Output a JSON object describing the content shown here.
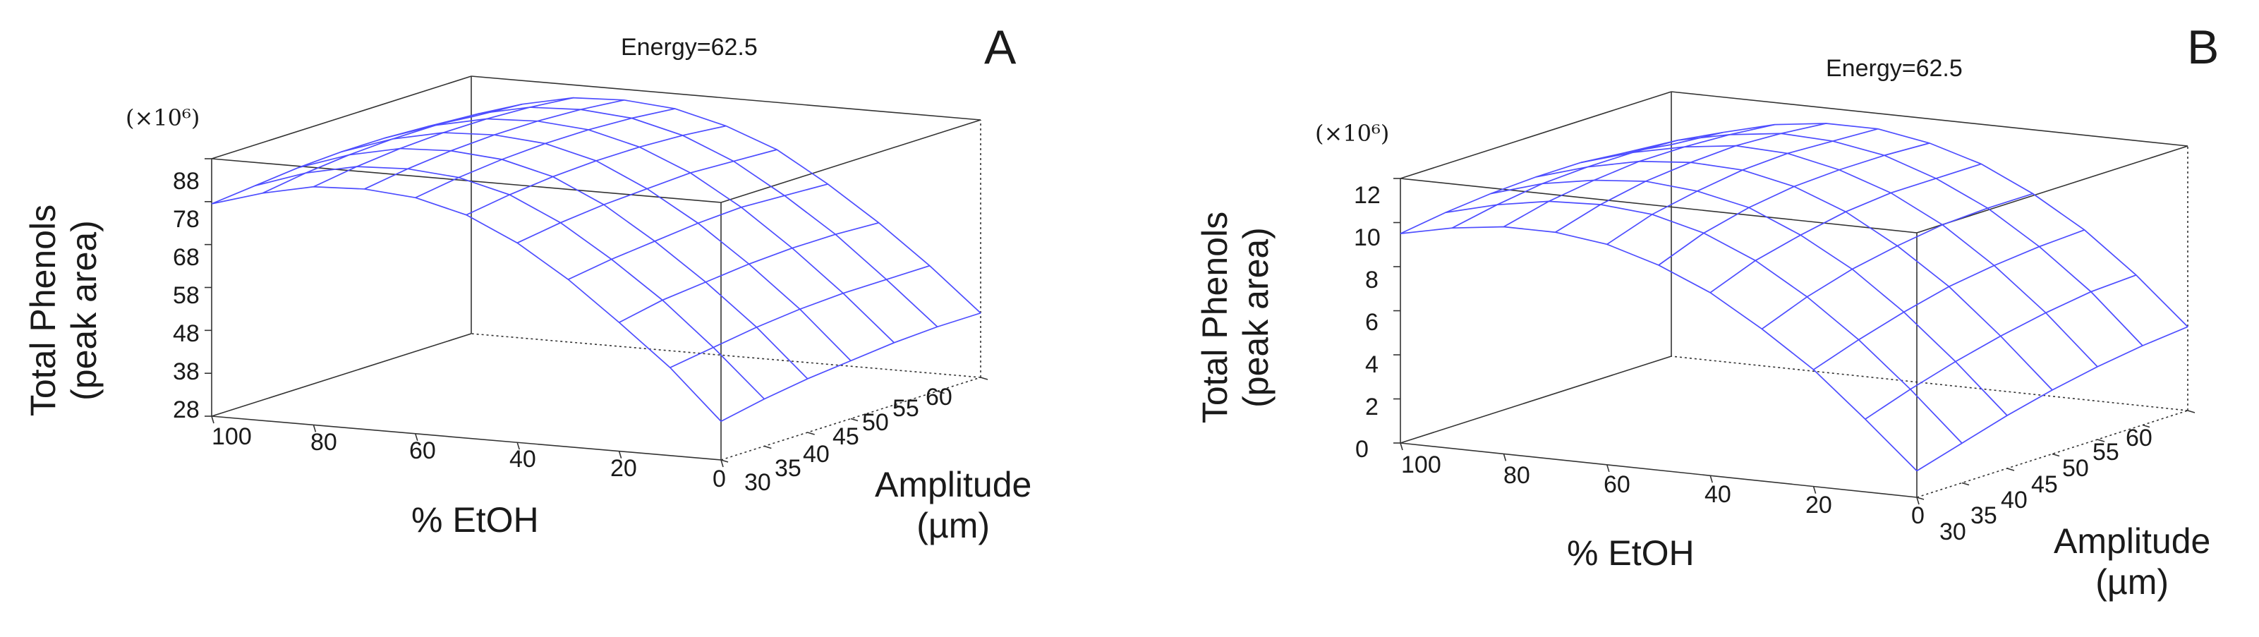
{
  "colors": {
    "surface": "#4d4dff",
    "box": "#333333",
    "text": "#1a1a1a"
  },
  "chart_data": [
    {
      "type": "surface",
      "panel": "A",
      "title": "Energy=62.5",
      "multiplier": "(×10⁶)",
      "zlabel_line1": "Total Phenols",
      "zlabel_line2": "(peak area)",
      "xlabel": "% EtOH",
      "ylabel_line1": "Amplitude",
      "ylabel_line2": "(µm)",
      "x_ticks": [
        "100",
        "80",
        "60",
        "40",
        "20",
        "0"
      ],
      "y_ticks": [
        "30",
        "35",
        "40",
        "45",
        "50",
        "55",
        "60"
      ],
      "z_ticks": [
        "88",
        "78",
        "68",
        "58",
        "48",
        "38",
        "28"
      ],
      "xlim": [
        0,
        100
      ],
      "ylim": [
        30,
        60
      ],
      "zlim": [
        28,
        88
      ],
      "grid_x": [
        100,
        90,
        80,
        70,
        60,
        50,
        40,
        30,
        20,
        10,
        0
      ],
      "grid_y": [
        30,
        35,
        40,
        45,
        50,
        55,
        60
      ],
      "z_values": [
        [
          77.5,
          81.0,
          83.5,
          84.0,
          83.0,
          80.0,
          74.5,
          67.0,
          58.0,
          48.5,
          37.0
        ],
        [
          78.5,
          82.5,
          85.0,
          85.5,
          84.5,
          81.5,
          76.0,
          68.5,
          60.0,
          50.0,
          39.0
        ],
        [
          79.5,
          83.5,
          86.0,
          86.5,
          85.5,
          82.5,
          77.0,
          69.5,
          61.0,
          51.5,
          40.5
        ],
        [
          80.0,
          84.0,
          86.5,
          87.0,
          86.0,
          83.0,
          77.5,
          70.5,
          62.0,
          52.5,
          41.5
        ],
        [
          80.0,
          84.0,
          86.5,
          87.0,
          86.0,
          83.0,
          78.0,
          71.0,
          62.5,
          53.0,
          42.5
        ],
        [
          79.5,
          83.5,
          86.0,
          86.5,
          85.5,
          82.5,
          77.5,
          70.5,
          62.5,
          53.0,
          43.0
        ],
        [
          78.5,
          82.5,
          85.0,
          85.5,
          84.5,
          81.5,
          77.0,
          70.0,
          62.0,
          53.0,
          43.0
        ]
      ]
    },
    {
      "type": "surface",
      "panel": "B",
      "title": "Energy=62.5",
      "multiplier": "(×10⁶)",
      "zlabel_line1": "Total Phenols",
      "zlabel_line2": "(peak area)",
      "xlabel": "% EtOH",
      "ylabel_line1": "Amplitude",
      "ylabel_line2": "(µm)",
      "x_ticks": [
        "100",
        "80",
        "60",
        "40",
        "20",
        "0"
      ],
      "y_ticks": [
        "30",
        "35",
        "40",
        "45",
        "50",
        "55",
        "60"
      ],
      "z_ticks": [
        "12",
        "10",
        "8",
        "6",
        "4",
        "2",
        "0"
      ],
      "xlim": [
        0,
        100
      ],
      "ylim": [
        30,
        60
      ],
      "zlim": [
        0,
        12
      ],
      "grid_x": [
        100,
        90,
        80,
        70,
        60,
        50,
        40,
        30,
        20,
        10,
        0
      ],
      "grid_y": [
        30,
        35,
        40,
        45,
        50,
        55,
        60
      ],
      "z_values": [
        [
          9.5,
          10.0,
          10.3,
          10.3,
          10.0,
          9.3,
          8.3,
          6.9,
          5.3,
          3.3,
          1.2
        ],
        [
          9.8,
          10.4,
          10.8,
          10.9,
          10.7,
          10.1,
          9.1,
          7.7,
          6.0,
          4.0,
          1.8
        ],
        [
          10.0,
          10.7,
          11.1,
          11.3,
          11.1,
          10.6,
          9.6,
          8.3,
          6.6,
          4.6,
          2.4
        ],
        [
          10.1,
          10.8,
          11.3,
          11.5,
          11.4,
          10.9,
          10.0,
          8.7,
          7.1,
          5.1,
          2.9
        ],
        [
          10.1,
          10.8,
          11.3,
          11.6,
          11.5,
          11.0,
          10.2,
          9.0,
          7.4,
          5.5,
          3.3
        ],
        [
          9.9,
          10.7,
          11.2,
          11.5,
          11.4,
          11.0,
          10.2,
          9.1,
          7.6,
          5.8,
          3.6
        ],
        [
          9.6,
          10.4,
          11.0,
          11.3,
          11.3,
          10.9,
          10.2,
          9.1,
          7.7,
          5.9,
          3.8
        ]
      ]
    }
  ]
}
